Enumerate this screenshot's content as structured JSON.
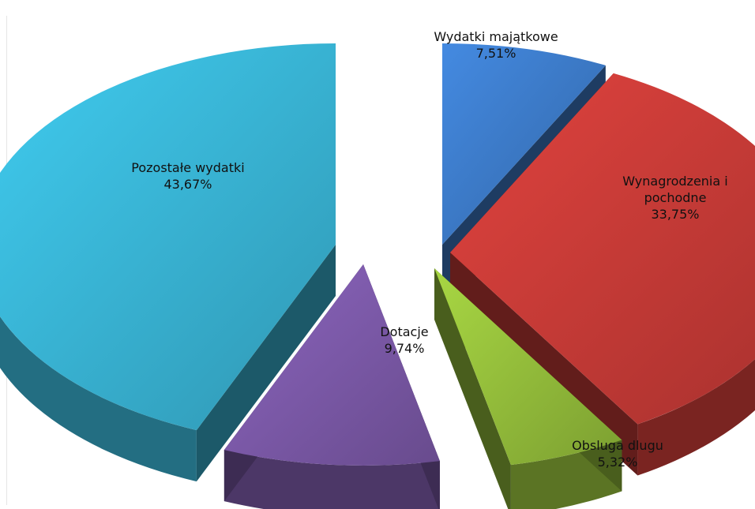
{
  "chart_data": {
    "type": "pie",
    "title": "",
    "slices": [
      {
        "name": "Wydatki majątkowe",
        "value": 7.51,
        "value_label": "7,51%",
        "color": "#3b78c4"
      },
      {
        "name": "Wynagrodzenia i pochodne",
        "value": 33.75,
        "value_label": "33,75%",
        "color": "#c43a36"
      },
      {
        "name": "Obsluga dlugu",
        "value": 5.32,
        "value_label": "5,32%",
        "color": "#92bb3a"
      },
      {
        "name": "Dotacje",
        "value": 9.74,
        "value_label": "9,74%",
        "color": "#7a58a6"
      },
      {
        "name": "Pozostałe wydatki",
        "value": 43.67,
        "value_label": "43,67%",
        "color": "#38b2d2"
      }
    ]
  }
}
